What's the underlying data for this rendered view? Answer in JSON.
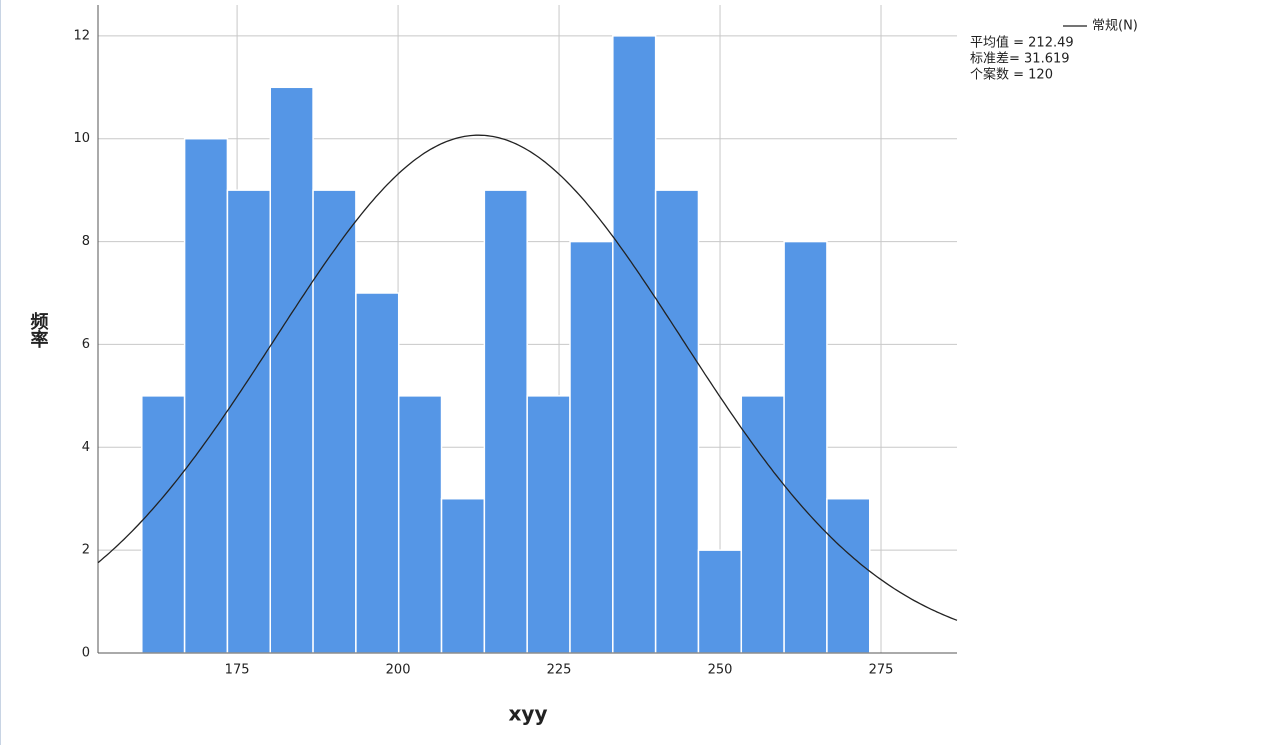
{
  "chart_data": {
    "type": "histogram",
    "x_label": "xyy",
    "y_label": "频率",
    "bins": [
      160.2,
      166.85,
      173.5,
      180.15,
      186.8,
      193.45,
      200.1,
      206.75,
      213.4,
      220.05,
      226.7,
      233.35,
      240,
      246.65,
      253.3,
      259.95,
      266.6,
      273.25
    ],
    "values": [
      5,
      10,
      9,
      11,
      9,
      7,
      5,
      3,
      9,
      5,
      8,
      12,
      9,
      2,
      5,
      8,
      3
    ],
    "color": "#5596e6",
    "xlim": [
      153.4,
      286.8
    ],
    "xticks": [
      175,
      200,
      225,
      250,
      275
    ],
    "ylim": [
      0,
      12.6
    ],
    "yticks": [
      0,
      2,
      4,
      6,
      8,
      10,
      12
    ],
    "grid": true,
    "normal": {
      "name": "常规(N)",
      "color": "#222222",
      "stats": [
        {
          "value": 212.49,
          "label": "平均值 = 212.49"
        },
        {
          "value": 31.619,
          "label": "标准差= 31.619"
        },
        {
          "value": 120,
          "label": "个案数 = 120"
        }
      ]
    }
  }
}
